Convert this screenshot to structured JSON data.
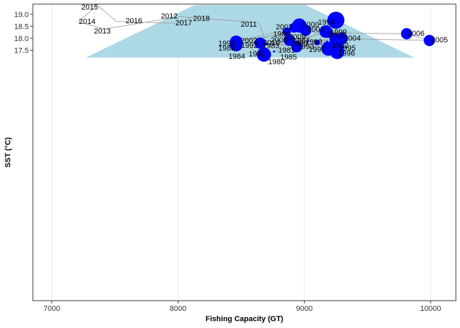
{
  "chart_data": {
    "type": "scatter",
    "xlabel": "Fishing Capacity (GT)",
    "ylabel": "SST (°C)",
    "xlim": [
      6850,
      10200
    ],
    "ylim": [
      7.1,
      19.42
    ],
    "ylim_comment": "",
    "x_ticks": [
      7000,
      8000,
      9000,
      10000
    ],
    "x_tick_labels": [
      "7000",
      "8000",
      "9000",
      "10000"
    ],
    "y_ticks": [
      17.5,
      18.0,
      18.5,
      19.0
    ],
    "y_tick_labels": [
      "17.5",
      "18.0",
      "18.5",
      "19.0"
    ],
    "grid": true,
    "legend": "none",
    "colors": {
      "area_fill": "#add8e6",
      "points": "#0000ff",
      "path": "#999999",
      "outside_path": "#777777"
    },
    "area_polygon": [
      [
        7270,
        17.2
      ],
      [
        8130,
        19.38
      ],
      [
        9010,
        19.38
      ],
      [
        9870,
        17.2
      ]
    ],
    "points": [
      {
        "year": "1980",
        "x": 9030,
        "y": 17.88,
        "size": 0.5
      },
      {
        "year": "1981",
        "x": 9250,
        "y": 17.57,
        "size": 0.5
      },
      {
        "year": "1982",
        "x": 9250,
        "y": 17.63,
        "size": 0.5
      },
      {
        "year": "1983",
        "x": 8700,
        "y": 17.77,
        "size": 0.5
      },
      {
        "year": "1984",
        "x": 8650,
        "y": 17.35,
        "size": 0.5
      },
      {
        "year": "1985",
        "x": 8760,
        "y": 17.45,
        "size": 0.5
      },
      {
        "year": "1986",
        "x": 9180,
        "y": 17.86,
        "size": 0.5
      },
      {
        "year": "1987",
        "x": 8880,
        "y": 17.92,
        "size": 5
      },
      {
        "year": "1988",
        "x": 8860,
        "y": 18.27,
        "size": 3
      },
      {
        "year": "1989",
        "x": 8460,
        "y": 17.72,
        "size": 6
      },
      {
        "year": "1990",
        "x": 8460,
        "y": 17.85,
        "size": 6
      },
      {
        "year": "1992",
        "x": 8650,
        "y": 17.8,
        "size": 5
      },
      {
        "year": "1993",
        "x": 8940,
        "y": 17.65,
        "size": 5
      },
      {
        "year": "1994",
        "x": 9250,
        "y": 18.75,
        "size": 9
      },
      {
        "year": "1995",
        "x": 9250,
        "y": 17.62,
        "size": 8
      },
      {
        "year": "1996",
        "x": 9260,
        "y": 17.43,
        "size": 7
      },
      {
        "year": "1997",
        "x": 9190,
        "y": 17.57,
        "size": 7
      },
      {
        "year": "1998",
        "x": 9100,
        "y": 17.82,
        "size": 1
      },
      {
        "year": "1999",
        "x": 9170,
        "y": 18.28,
        "size": 6
      },
      {
        "year": "1991",
        "x": 8680,
        "y": 17.32,
        "size": 7
      },
      {
        "year": "2000",
        "x": 8960,
        "y": 18.53,
        "size": 7
      },
      {
        "year": "2001",
        "x": 9010,
        "y": 18.33,
        "size": 5
      },
      {
        "year": "2002",
        "x": 8460,
        "y": 17.86,
        "size": 5
      },
      {
        "year": "2003",
        "x": 8920,
        "y": 18.44,
        "size": 4
      },
      {
        "year": "2004",
        "x": 9300,
        "y": 17.99,
        "size": 5
      },
      {
        "year": "2005",
        "x": 9990,
        "y": 17.91,
        "size": 5
      },
      {
        "year": "2006",
        "x": 9810,
        "y": 18.19,
        "size": 5
      },
      {
        "year": "2007",
        "x": 9190,
        "y": 18.22,
        "size": 4
      },
      {
        "year": "2008",
        "x": 8880,
        "y": 17.92,
        "size": 0.5
      },
      {
        "year": "2009",
        "x": 9250,
        "y": 17.94,
        "size": 6
      },
      {
        "year": "2010",
        "x": 8700,
        "y": 17.76,
        "size": 0.5
      },
      {
        "year": "2011",
        "x": 8640,
        "y": 18.65,
        "size": 0
      },
      {
        "year": "2012",
        "x": 8020,
        "y": 18.9,
        "size": 0
      },
      {
        "year": "2013",
        "x": 7420,
        "y": 18.39,
        "size": 0
      },
      {
        "year": "2014",
        "x": 7210,
        "y": 18.68,
        "size": 0
      },
      {
        "year": "2015",
        "x": 7360,
        "y": 19.38,
        "size": 0
      },
      {
        "year": "2016",
        "x": 7510,
        "y": 18.7,
        "size": 0
      },
      {
        "year": "2017",
        "x": 7980,
        "y": 18.62,
        "size": 0
      },
      {
        "year": "2018",
        "x": 8100,
        "y": 18.85,
        "size": 0
      }
    ],
    "path_order": [
      "1980",
      "1981",
      "1982",
      "1983",
      "1984",
      "1985",
      "1986",
      "1987",
      "1988",
      "1989",
      "1990",
      "1991",
      "1992",
      "1993",
      "1994",
      "1995",
      "1996",
      "1997",
      "1998",
      "1999",
      "2000",
      "2001",
      "2002",
      "2003",
      "2004",
      "2005",
      "2006",
      "2007",
      "2008",
      "2009",
      "2010",
      "2011",
      "2012",
      "2013",
      "2014",
      "2015",
      "2016",
      "2017",
      "2018"
    ],
    "labels": [
      {
        "text": "1980",
        "x": 8780,
        "y": 17.04
      },
      {
        "text": "1981",
        "x": 8860,
        "y": 17.52
      },
      {
        "text": "1982",
        "x": 9285,
        "y": 17.71
      },
      {
        "text": "1983",
        "x": 8735,
        "y": 17.7
      },
      {
        "text": "1984",
        "x": 8465,
        "y": 17.26
      },
      {
        "text": "1985",
        "x": 8875,
        "y": 17.23
      },
      {
        "text": "1986",
        "x": 8960,
        "y": 17.8
      },
      {
        "text": "1987",
        "x": 8975,
        "y": 17.92
      },
      {
        "text": "1988",
        "x": 8820,
        "y": 18.18
      },
      {
        "text": "1989",
        "x": 8385,
        "y": 17.61
      },
      {
        "text": "1990",
        "x": 8385,
        "y": 17.8
      },
      {
        "text": "1991",
        "x": 8625,
        "y": 17.36
      },
      {
        "text": "1992",
        "x": 8565,
        "y": 17.72
      },
      {
        "text": "1993",
        "x": 9010,
        "y": 17.67
      },
      {
        "text": "1994",
        "x": 9175,
        "y": 18.68
      },
      {
        "text": "1995",
        "x": 9340,
        "y": 17.61
      },
      {
        "text": "1996",
        "x": 9335,
        "y": 17.39
      },
      {
        "text": "1997",
        "x": 9100,
        "y": 17.55
      },
      {
        "text": "1998",
        "x": 9075,
        "y": 17.86
      },
      {
        "text": "1999",
        "x": 9270,
        "y": 18.27
      },
      {
        "text": "2000",
        "x": 9050,
        "y": 18.58
      },
      {
        "text": "2001",
        "x": 9090,
        "y": 18.38
      },
      {
        "text": "2002",
        "x": 8560,
        "y": 17.91
      },
      {
        "text": "2003",
        "x": 8840,
        "y": 18.49
      },
      {
        "text": "2004",
        "x": 9380,
        "y": 18.02
      },
      {
        "text": "2005",
        "x": 10070,
        "y": 17.95
      },
      {
        "text": "2006",
        "x": 9885,
        "y": 18.22
      },
      {
        "text": "2007",
        "x": 9255,
        "y": 18.14
      },
      {
        "text": "2008",
        "x": 8800,
        "y": 17.95
      },
      {
        "text": "2009",
        "x": 8945,
        "y": 18.07
      },
      {
        "text": "2010",
        "x": 8740,
        "y": 17.83
      },
      {
        "text": "2011",
        "x": 8560,
        "y": 18.6
      },
      {
        "text": "2012",
        "x": 7930,
        "y": 18.94
      },
      {
        "text": "2013",
        "x": 7400,
        "y": 18.31
      },
      {
        "text": "2014",
        "x": 7280,
        "y": 18.71
      },
      {
        "text": "2015",
        "x": 7300,
        "y": 19.3
      },
      {
        "text": "2016",
        "x": 7650,
        "y": 18.74
      },
      {
        "text": "2017",
        "x": 8045,
        "y": 18.66
      },
      {
        "text": "2018",
        "x": 8185,
        "y": 18.84
      }
    ]
  }
}
